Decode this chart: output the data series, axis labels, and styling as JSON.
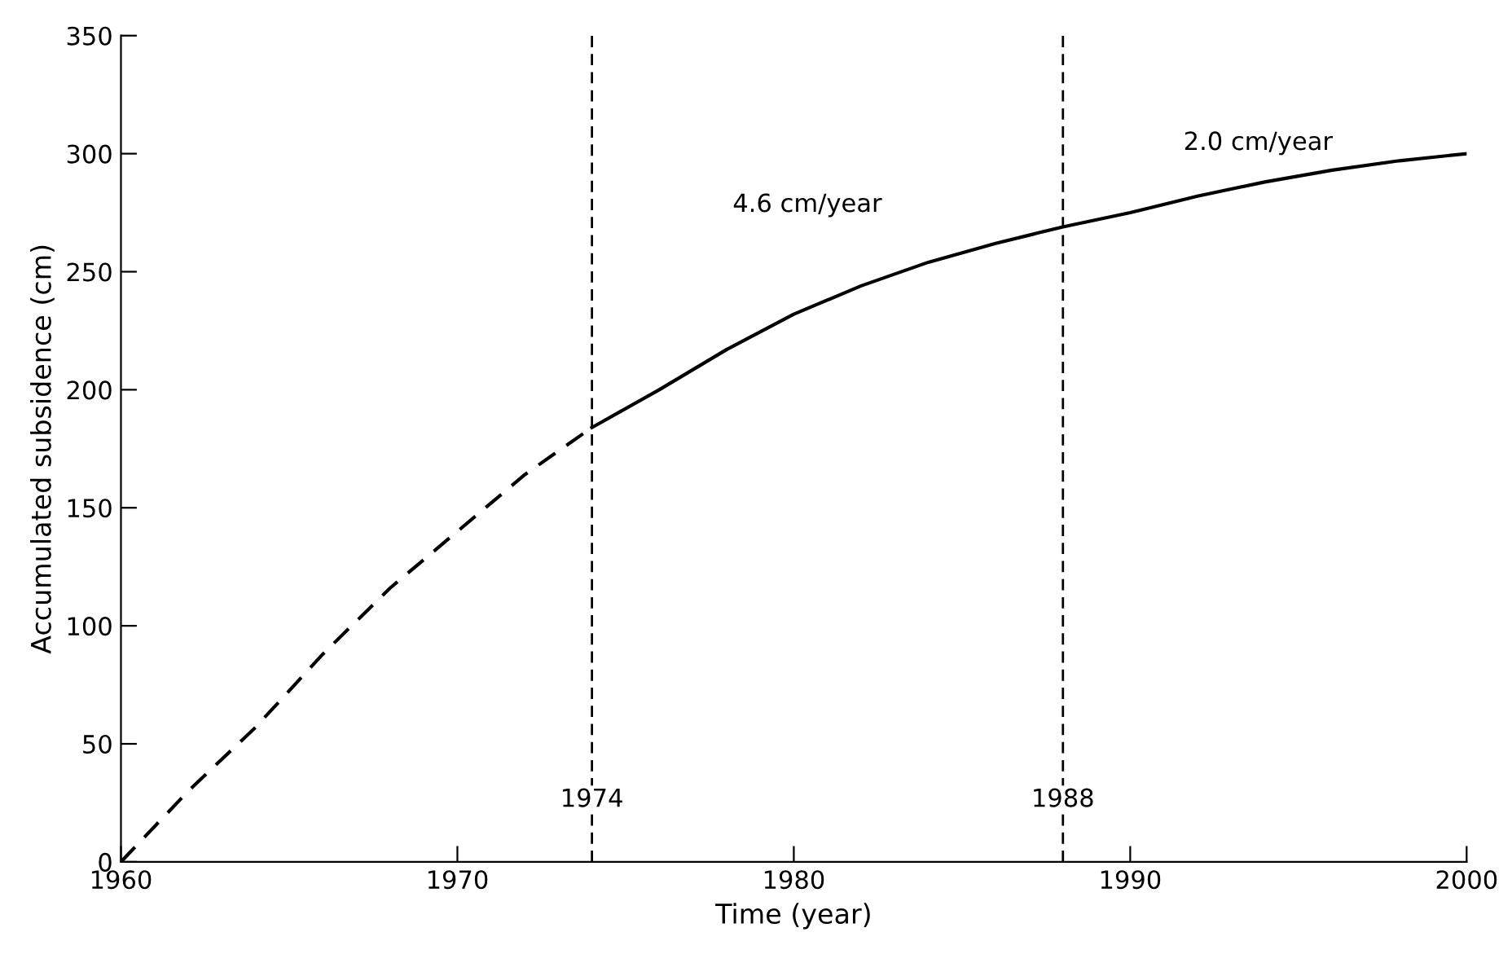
{
  "chart_data": {
    "type": "line",
    "xlabel": "Time (year)",
    "ylabel": "Accumulated subsidence (cm)",
    "xlim": [
      1960,
      2000
    ],
    "ylim": [
      0,
      350
    ],
    "xticks": [
      1960,
      1970,
      1980,
      1990,
      2000
    ],
    "yticks": [
      0,
      50,
      100,
      150,
      200,
      250,
      300,
      350
    ],
    "grid": false,
    "legend": false,
    "marker": "none",
    "series": [
      {
        "color": "#000000",
        "line_style": "dashed",
        "x": [
          1960,
          1962,
          1964,
          1966,
          1968,
          1970,
          1972,
          1974
        ],
        "values": [
          0,
          30,
          57,
          88,
          116,
          140,
          164,
          184
        ]
      },
      {
        "color": "#000000",
        "line_style": "solid",
        "x": [
          1974,
          1976,
          1978,
          1980,
          1982,
          1984,
          1986,
          1988,
          1990,
          1992,
          1994,
          1996,
          1998,
          2000
        ],
        "values": [
          184,
          200,
          217,
          232,
          244,
          254,
          262,
          269,
          275,
          282,
          288,
          293,
          297,
          300
        ]
      }
    ],
    "ref_lines": [
      {
        "axis": "x",
        "value": 1974,
        "label": "1974",
        "color": "#000000",
        "line_style": "dashed"
      },
      {
        "axis": "x",
        "value": 1988,
        "label": "1988",
        "color": "#000000",
        "line_style": "dashed"
      }
    ],
    "annotations": [
      "4.6 cm/year",
      "2.0 cm/year"
    ]
  }
}
